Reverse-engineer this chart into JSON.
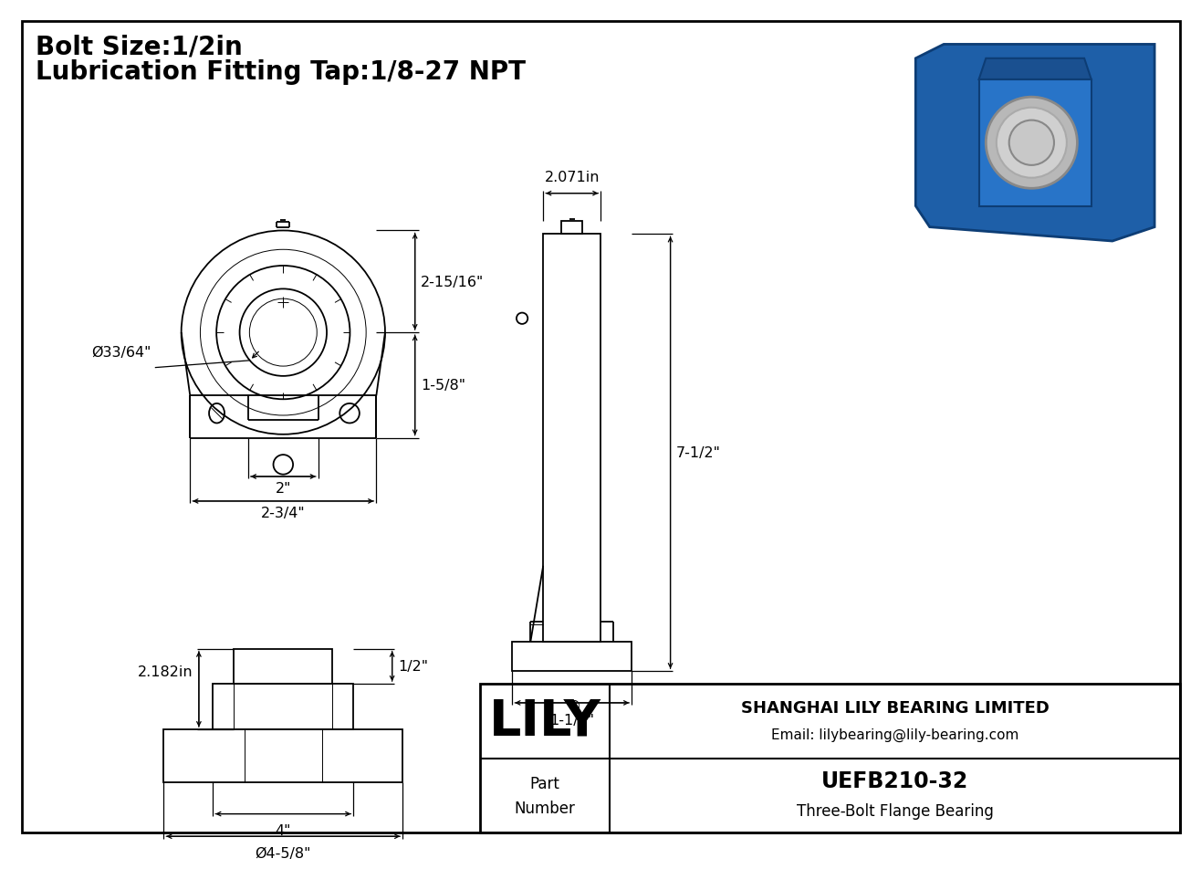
{
  "background_color": "#ffffff",
  "line_color": "#000000",
  "title_line1": "Bolt Size:1/2in",
  "title_line2": "Lubrication Fitting Tap:1/8-27 NPT",
  "title_fontsize": 20,
  "dim_fontsize": 11.5,
  "company_name": "SHANGHAI LILY BEARING LIMITED",
  "company_email": "Email: lilybearing@lily-bearing.com",
  "part_number": "UEFB210-32",
  "part_type": "Three-Bolt Flange Bearing",
  "lily_text": "LILY",
  "dims": {
    "d_inner": "Ø33/64\"",
    "h_upper": "2-15/16\"",
    "h_lower": "1-5/8\"",
    "w_center": "2\"",
    "w_total": "2-3/4\"",
    "depth_top": "2.071in",
    "side_height": "7-1/2\"",
    "base_width": "1-1/2\"",
    "bot_width": "1/2\"",
    "bot_left": "2.182in",
    "bot_dim1": "4\"",
    "bot_dim2": "Ø4-5/8\""
  }
}
